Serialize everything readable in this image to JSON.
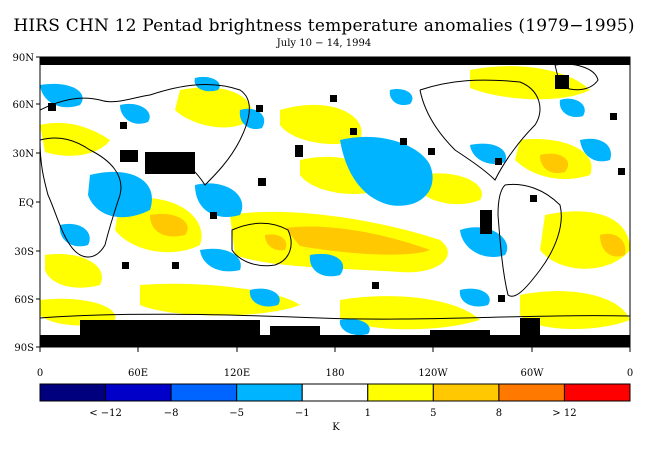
{
  "title": "HIRS CHN 12 Pentad brightness temperature anomalies (1979−1995)",
  "subtitle": "July 10 − 14, 1994",
  "lat_labels": [
    "90N",
    "60N",
    "30N",
    "EQ",
    "30S",
    "60S",
    "90S"
  ],
  "lon_labels": [
    "0",
    "60E",
    "120E",
    "180",
    "120W",
    "60W",
    "0"
  ],
  "colorbar": {
    "colors": [
      "#00007f",
      "#0000c8",
      "#0064ff",
      "#00b4ff",
      "#ffffff",
      "#ffff00",
      "#ffc800",
      "#ff7800",
      "#ff0000"
    ],
    "labels": [
      "< −12",
      "−8",
      "−5",
      "−1",
      "1",
      "5",
      "8",
      "> 12"
    ],
    "unit": "K"
  },
  "legend_colors": {
    "missing": "#000000",
    "coast": "#000000"
  }
}
